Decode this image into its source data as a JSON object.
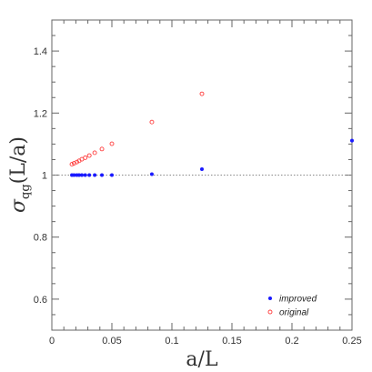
{
  "chart_data": {
    "type": "scatter",
    "title": "",
    "xlabel": "a/L",
    "ylabel": "σqg(L/a)",
    "ylabel_main": "σ",
    "ylabel_sub": "qg",
    "ylabel_tail": "(L/a)",
    "xlim": [
      0,
      0.25
    ],
    "ylim": [
      0.5,
      1.5
    ],
    "x_ticks": [
      0,
      0.05,
      0.1,
      0.15,
      0.2,
      0.25
    ],
    "x_tick_labels": [
      "0",
      "0.05",
      "0.1",
      "0.15",
      "0.2",
      "0.25"
    ],
    "y_ticks": [
      0.6,
      0.8,
      1.0,
      1.2,
      1.4
    ],
    "y_tick_labels": [
      "0.6",
      "0.8",
      "1",
      "1.2",
      "1.4"
    ],
    "reference_line": 1.0,
    "legend_position": "bottom-right",
    "series": [
      {
        "name": "improved",
        "marker": "filled-circle",
        "color": "#1a1aff",
        "points": [
          [
            0.0167,
            1.0
          ],
          [
            0.0185,
            1.0
          ],
          [
            0.0208,
            1.0
          ],
          [
            0.0227,
            1.0
          ],
          [
            0.025,
            1.0
          ],
          [
            0.0278,
            1.0
          ],
          [
            0.0312,
            1.0
          ],
          [
            0.0357,
            1.0
          ],
          [
            0.0417,
            1.0
          ],
          [
            0.05,
            1.0
          ],
          [
            0.0833,
            1.003
          ],
          [
            0.125,
            1.019
          ],
          [
            0.25,
            1.111
          ]
        ]
      },
      {
        "name": "original",
        "marker": "open-circle",
        "color": "#ff3b3b",
        "points": [
          [
            0.0167,
            1.035
          ],
          [
            0.0185,
            1.038
          ],
          [
            0.0208,
            1.042
          ],
          [
            0.0227,
            1.046
          ],
          [
            0.025,
            1.051
          ],
          [
            0.0278,
            1.056
          ],
          [
            0.0312,
            1.063
          ],
          [
            0.0357,
            1.072
          ],
          [
            0.0417,
            1.084
          ],
          [
            0.05,
            1.101
          ],
          [
            0.0833,
            1.171
          ],
          [
            0.125,
            1.262
          ]
        ]
      }
    ]
  }
}
